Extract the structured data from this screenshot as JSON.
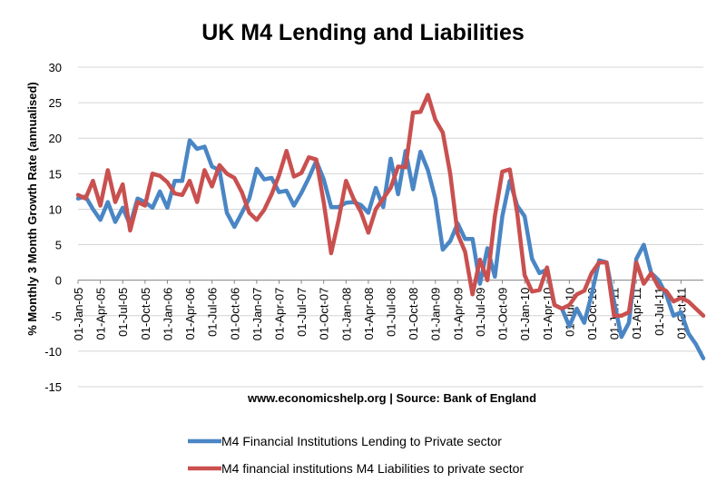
{
  "chart_data": {
    "type": "line",
    "title": "UK M4 Lending and Liabilities",
    "ylabel": "% Monthly 3 Month Growth Rate (annualised)",
    "xlabel": "www.economicshelp.org | Source: Bank of England",
    "ylim": [
      -15,
      30
    ],
    "yticks": [
      30,
      25,
      20,
      15,
      10,
      5,
      0,
      -5,
      -10,
      -15
    ],
    "grid": "horizontal",
    "legend_position": "bottom",
    "x_tick_labels": [
      "01-Jan-05",
      "01-Apr-05",
      "01-Jul-05",
      "01-Oct-05",
      "01-Jan-06",
      "01-Apr-06",
      "01-Jul-06",
      "01-Oct-06",
      "01-Jan-07",
      "01-Apr-07",
      "01-Jul-07",
      "01-Oct-07",
      "01-Jan-08",
      "01-Apr-08",
      "01-Jul-08",
      "01-Oct-08",
      "01-Jan-09",
      "01-Apr-09",
      "01-Jul-09",
      "01-Oct-09",
      "01-Jan-10",
      "01-Apr-10",
      "01-Jul-10",
      "01-Oct-10",
      "01-Jan-11",
      "01-Apr-11",
      "01-Jul-11",
      "01-Oct-11"
    ],
    "series": [
      {
        "name": "M4 Financial Institutions Lending to Private sector",
        "color": "#4a86c5",
        "values": [
          11.5,
          11.8,
          10,
          8.5,
          11,
          8.2,
          10.2,
          7.8,
          11.5,
          11,
          10.2,
          12.5,
          10.2,
          14,
          14,
          19.7,
          18.5,
          18.8,
          16,
          15.5,
          9.5,
          7.5,
          9.5,
          11.5,
          15.7,
          14.2,
          14.4,
          12.4,
          12.6,
          10.5,
          12.3,
          14.4,
          16.8,
          14.2,
          10.3,
          10.3,
          10.9,
          11,
          10.6,
          9.5,
          13,
          10.3,
          17.1,
          12.1,
          18.2,
          12.8,
          18.1,
          15.5,
          11.5,
          4.3,
          5.5,
          8,
          5.8,
          5.8,
          -0.5,
          4.5,
          0.5,
          9,
          14,
          10.5,
          9,
          3,
          1,
          1.5,
          -3.5,
          -4,
          -6.5,
          -4,
          -6,
          -2,
          2.8,
          2.5,
          -3,
          -8,
          -6,
          3,
          5,
          1,
          0,
          -2,
          -5,
          -4.5,
          -7.5,
          -9,
          -11
        ]
      },
      {
        "name": "M4 financial institutions M4 Liabilities to private sector",
        "color": "#c9504f",
        "values": [
          12,
          11.5,
          14,
          10.5,
          15.5,
          11,
          13.5,
          7,
          11,
          10.5,
          15,
          14.7,
          13.8,
          12.2,
          12,
          14,
          11,
          15.5,
          13.2,
          16.2,
          15,
          14.4,
          12.4,
          9.5,
          8.5,
          9.9,
          12.1,
          14.8,
          18.2,
          14.6,
          15.1,
          17.3,
          17,
          11,
          3.8,
          8.5,
          14,
          11.5,
          9.6,
          6.7,
          10,
          11.5,
          13,
          16,
          15.9,
          23.6,
          23.7,
          26.1,
          22.6,
          20.8,
          15,
          6.5,
          4,
          -2,
          2.9,
          0,
          9,
          15.3,
          15.6,
          9.5,
          0.7,
          -1.6,
          -1.4,
          1.8,
          -3.5,
          -4,
          -3.5,
          -2,
          -1.5,
          1,
          2.5,
          2.5,
          -5,
          -5,
          -4.5,
          2.5,
          -0.5,
          1,
          -1,
          -1.5,
          -3,
          -2.5,
          -3,
          -4,
          -5
        ]
      }
    ]
  }
}
